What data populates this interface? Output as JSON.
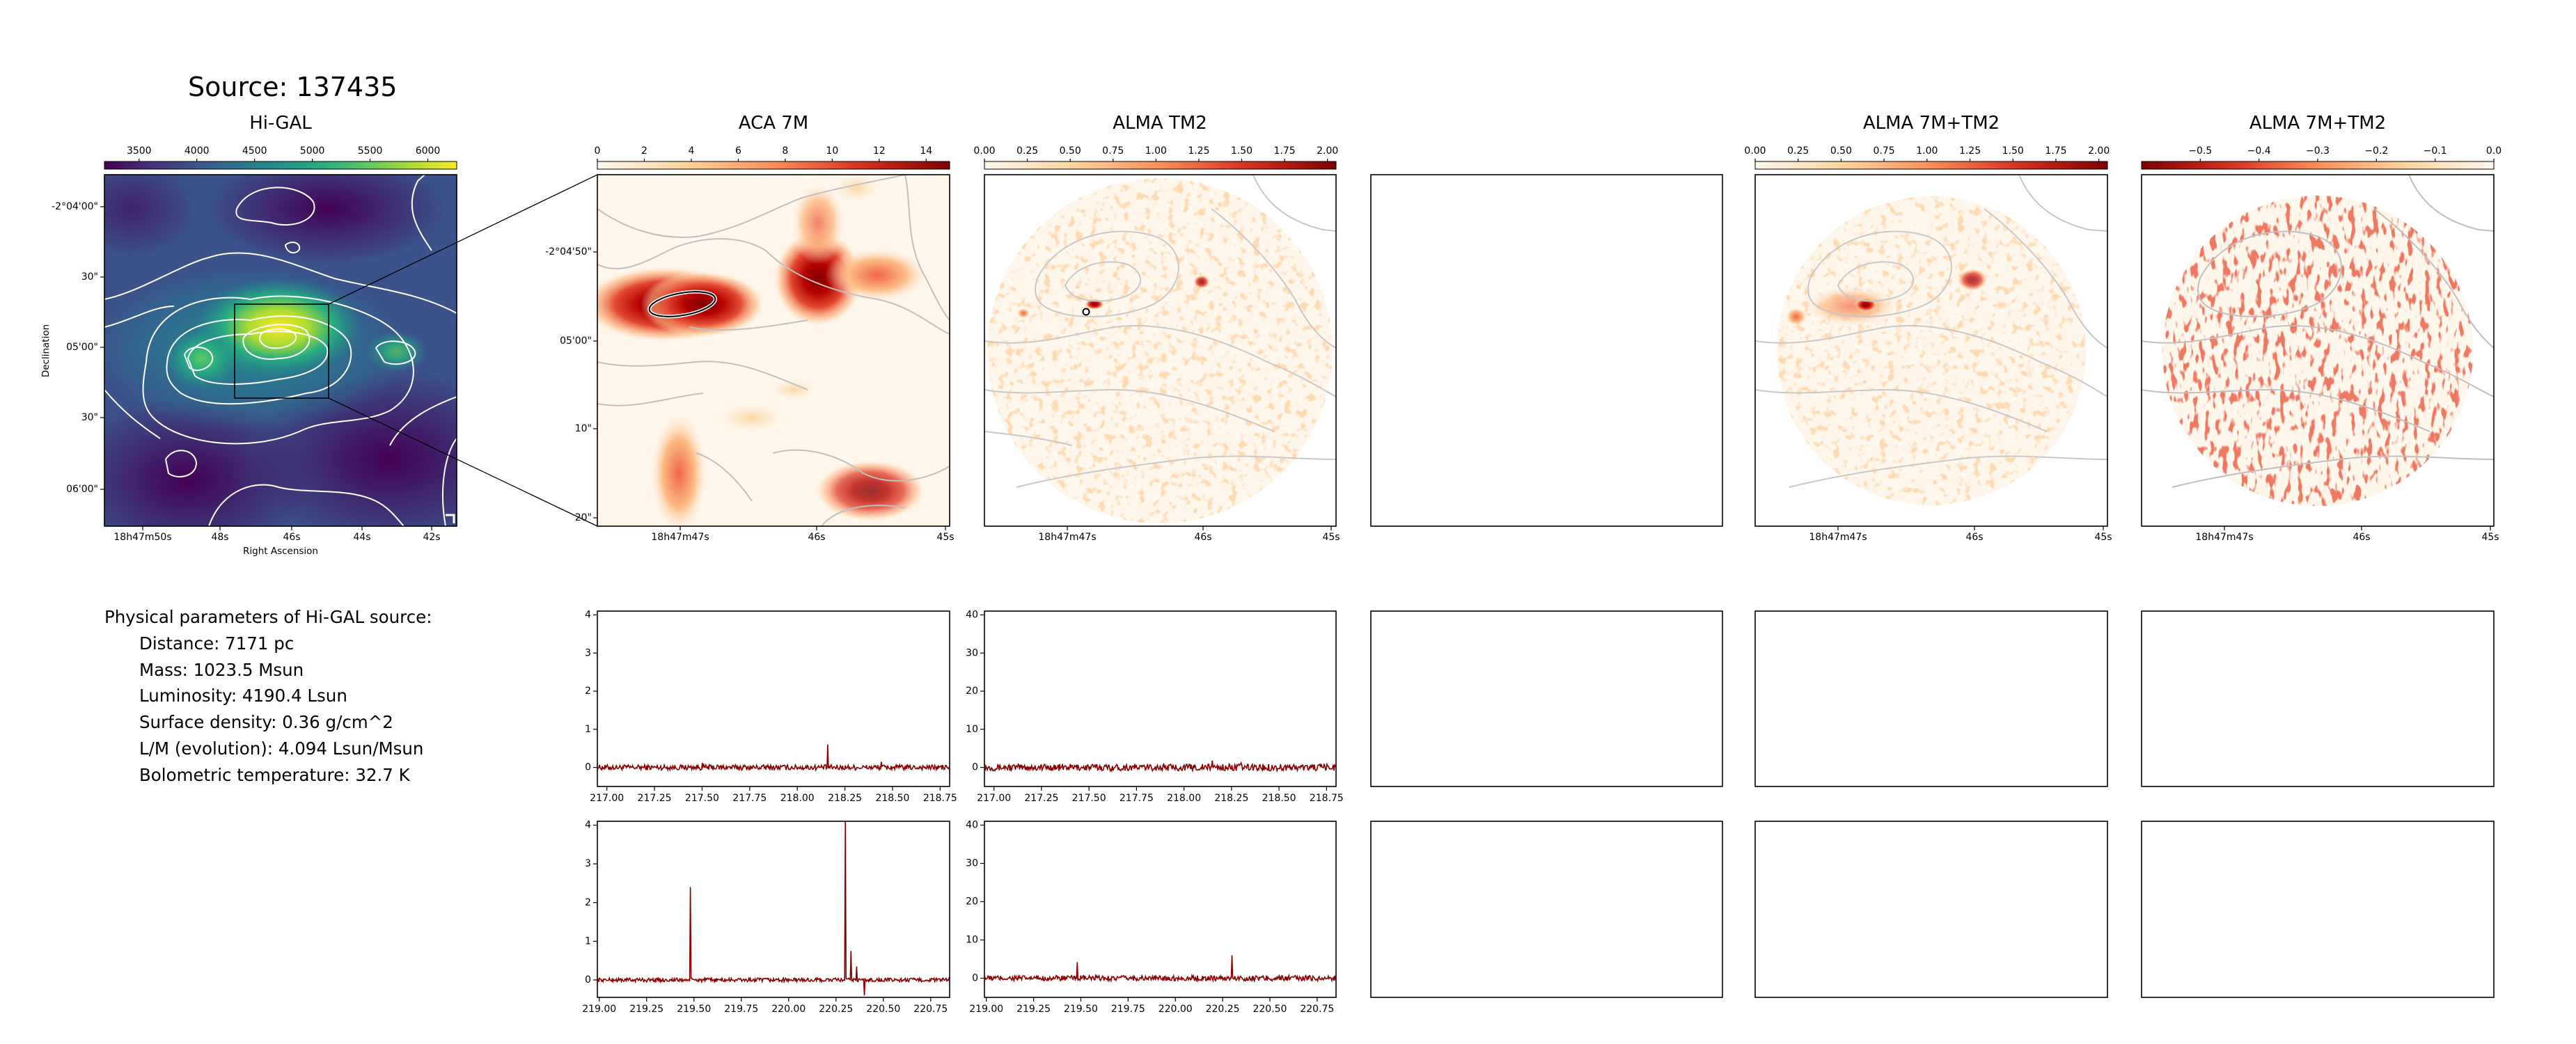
{
  "source_title": "Source: 137435",
  "panel_titles": {
    "higal": "Hi-GAL",
    "aca7m": "ACA 7M",
    "tm2": "ALMA TM2",
    "combined": "ALMA 7M+TM2",
    "residual": "ALMA 7M+TM2"
  },
  "params": {
    "heading": "Physical parameters of Hi-GAL source:",
    "distance": "Distance: 7171 pc",
    "mass": "Mass: 1023.5 Msun",
    "luminosity": "Luminosity: 4190.4 Lsun",
    "surface_density": "Surface density: 0.36 g/cm^2",
    "lm_ratio": "L/M (evolution): 4.094 Lsun/Msun",
    "tbol": "Bolometric temperature: 32.7 K"
  },
  "colors": {
    "spectrum": "#8b0000",
    "axis": "#000000",
    "contour_light": "#ffffff",
    "contour_grey": "#c0c0c0",
    "viridis": [
      "#440154",
      "#472d7b",
      "#3b528b",
      "#2c728e",
      "#21918c",
      "#28ae80",
      "#5ec962",
      "#addc30",
      "#fde725"
    ],
    "orrd": [
      "#fff7ec",
      "#fdd49e",
      "#fc8d59",
      "#d7301f",
      "#7f0000"
    ]
  },
  "chart_data": [
    {
      "type": "heatmap",
      "id": "higal",
      "title": "Hi-GAL",
      "colorbar_ticks": [
        "3500",
        "4000",
        "4500",
        "5000",
        "5500",
        "6000"
      ],
      "colorbar_range": [
        3200,
        6250
      ],
      "xlabel": "Right Ascension",
      "ylabel": "Declination",
      "x_ticks": [
        "18h47m50s",
        "48s",
        "46s",
        "44s",
        "42s"
      ],
      "y_ticks": [
        "-2°04'00\"",
        "30\"",
        "05'00\"",
        "30\"",
        "06'00\""
      ]
    },
    {
      "type": "heatmap",
      "id": "aca7m",
      "title": "ACA 7M",
      "colorbar_ticks": [
        "0",
        "2",
        "4",
        "6",
        "8",
        "10",
        "12",
        "14"
      ],
      "colorbar_range": [
        0,
        15
      ],
      "x_ticks": [
        "18h47m47s",
        "46s",
        "45s"
      ],
      "y_ticks": [
        "-2°04'50\"",
        "05'00\"",
        "10\"",
        "20\""
      ]
    },
    {
      "type": "heatmap",
      "id": "tm2",
      "title": "ALMA TM2",
      "colorbar_ticks": [
        "0.00",
        "0.25",
        "0.50",
        "0.75",
        "1.00",
        "1.25",
        "1.50",
        "1.75",
        "2.00"
      ],
      "colorbar_range": [
        0,
        2.05
      ],
      "x_ticks": [
        "18h47m47s",
        "46s",
        "45s"
      ]
    },
    {
      "type": "heatmap",
      "id": "combined",
      "title": "ALMA 7M+TM2",
      "colorbar_ticks": [
        "0.00",
        "0.25",
        "0.50",
        "0.75",
        "1.00",
        "1.25",
        "1.50",
        "1.75",
        "2.00"
      ],
      "colorbar_range": [
        0,
        2.05
      ],
      "x_ticks": [
        "18h47m47s",
        "46s",
        "45s"
      ]
    },
    {
      "type": "heatmap",
      "id": "residual",
      "title": "ALMA 7M+TM2",
      "colorbar_ticks": [
        "−0.5",
        "−0.4",
        "−0.3",
        "−0.2",
        "−0.1",
        "0.0"
      ],
      "colorbar_range": [
        -0.6,
        0.0
      ],
      "x_ticks": [
        "18h47m47s",
        "46s",
        "45s"
      ]
    },
    {
      "type": "line",
      "id": "spec_aca_upper",
      "xlim": [
        216.95,
        218.8
      ],
      "ylim": [
        -0.5,
        4.1
      ],
      "x_ticks": [
        "217.00",
        "217.25",
        "217.50",
        "217.75",
        "218.00",
        "218.25",
        "218.50",
        "218.75"
      ],
      "y_ticks": [
        "0",
        "1",
        "2",
        "3",
        "4"
      ],
      "noise": 0.07,
      "spikes": [
        [
          218.16,
          0.6
        ],
        [
          218.44,
          0.15
        ],
        [
          217.5,
          0.12
        ]
      ]
    },
    {
      "type": "line",
      "id": "spec_tm2_upper",
      "xlim": [
        216.95,
        218.8
      ],
      "ylim": [
        -5,
        41
      ],
      "x_ticks": [
        "217.00",
        "217.25",
        "217.50",
        "217.75",
        "218.00",
        "218.25",
        "218.50",
        "218.75"
      ],
      "y_ticks": [
        "0",
        "10",
        "20",
        "30",
        "40"
      ],
      "noise": 0.9,
      "spikes": [
        [
          218.15,
          1.8
        ],
        [
          218.3,
          1.2
        ]
      ]
    },
    {
      "type": "line",
      "id": "spec_aca_lower",
      "xlim": [
        218.99,
        220.85
      ],
      "ylim": [
        -0.45,
        4.1
      ],
      "x_ticks": [
        "219.00",
        "219.25",
        "219.50",
        "219.75",
        "220.00",
        "220.25",
        "220.50",
        "220.75"
      ],
      "y_ticks": [
        "0",
        "1",
        "2",
        "3",
        "4"
      ],
      "noise": 0.05,
      "spikes": [
        [
          219.48,
          2.4
        ],
        [
          220.3,
          4.1
        ],
        [
          220.33,
          0.75
        ],
        [
          220.36,
          0.35
        ],
        [
          220.4,
          -0.4
        ]
      ]
    },
    {
      "type": "line",
      "id": "spec_tm2_lower",
      "xlim": [
        218.99,
        220.85
      ],
      "ylim": [
        -5,
        41
      ],
      "x_ticks": [
        "219.00",
        "219.25",
        "219.50",
        "219.75",
        "220.00",
        "220.25",
        "220.50",
        "220.75"
      ],
      "y_ticks": [
        "0",
        "10",
        "20",
        "30",
        "40"
      ],
      "noise": 0.7,
      "spikes": [
        [
          219.48,
          4.2
        ],
        [
          220.3,
          6.0
        ]
      ]
    }
  ]
}
